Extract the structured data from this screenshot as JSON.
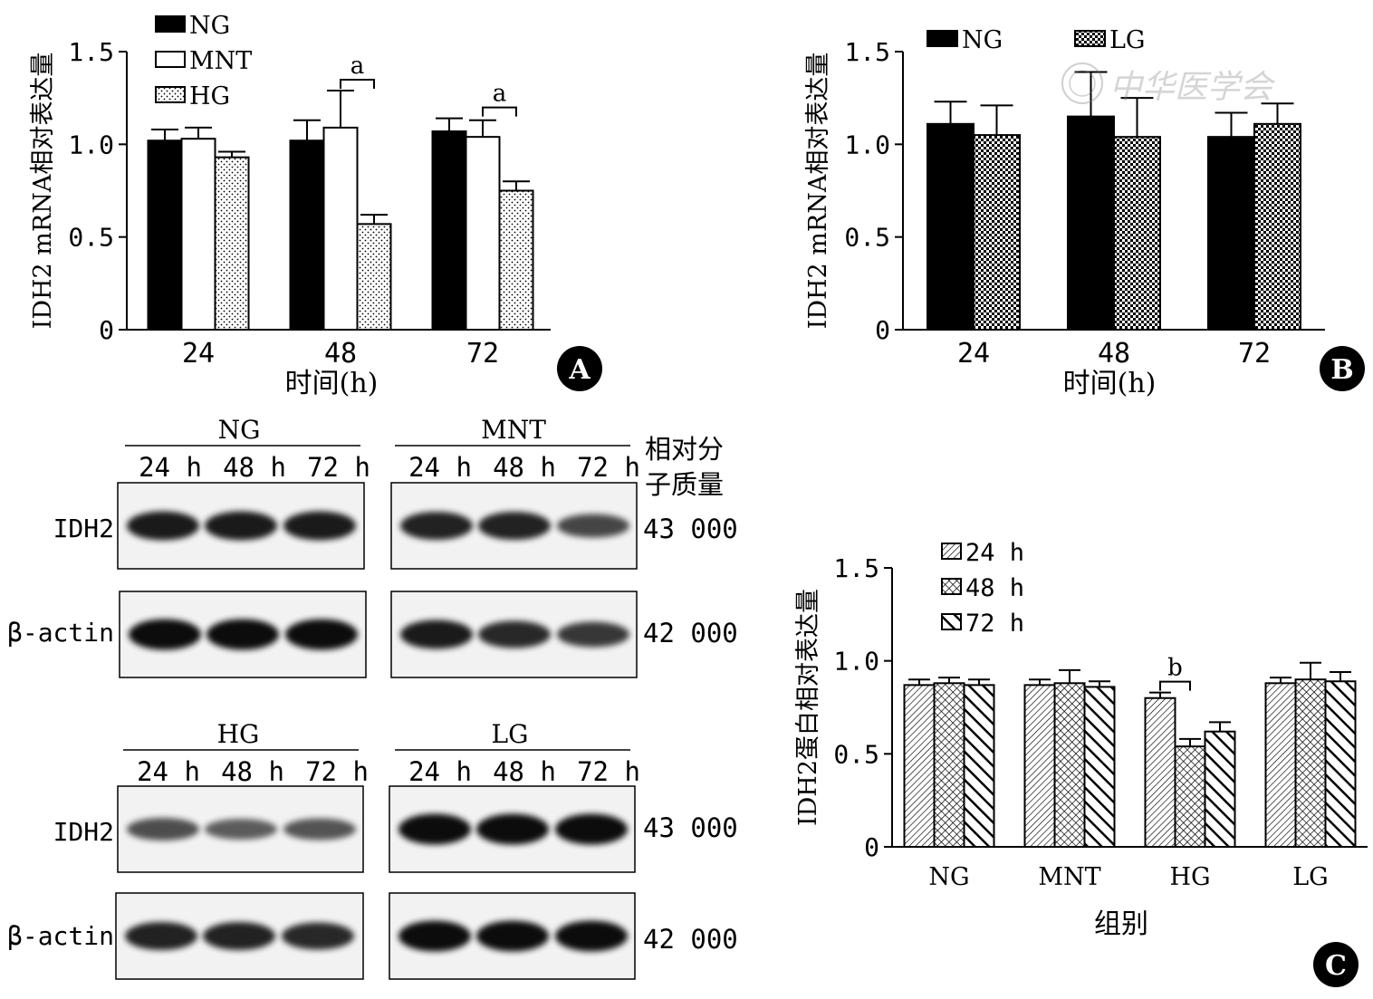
{
  "chart_data": [
    {
      "panel": "A",
      "type": "bar",
      "categories": [
        "24",
        "48",
        "72"
      ],
      "series": [
        {
          "name": "NG",
          "values": [
            1.02,
            1.02,
            1.07
          ],
          "errors": [
            0.06,
            0.11,
            0.07
          ]
        },
        {
          "name": "MNT",
          "values": [
            1.03,
            1.09,
            1.04
          ],
          "errors": [
            0.06,
            0.2,
            0.09
          ]
        },
        {
          "name": "HG",
          "values": [
            0.93,
            0.57,
            0.75
          ],
          "errors": [
            0.03,
            0.05,
            0.05
          ]
        }
      ],
      "xlabel": "时间(h)",
      "ylabel": "IDH2 mRNA相对表达量",
      "ylim": [
        0,
        1.5
      ],
      "yticks": [
        "0",
        "0.5",
        "1.0",
        "1.5"
      ],
      "annotations": [
        {
          "category": "48",
          "text": "a"
        },
        {
          "category": "72",
          "text": "a"
        }
      ],
      "legend": "top-left",
      "grid": false
    },
    {
      "panel": "B",
      "type": "bar",
      "categories": [
        "24",
        "48",
        "72"
      ],
      "series": [
        {
          "name": "NG",
          "values": [
            1.11,
            1.15,
            1.04
          ],
          "errors": [
            0.12,
            0.24,
            0.13
          ]
        },
        {
          "name": "LG",
          "values": [
            1.05,
            1.04,
            1.11
          ],
          "errors": [
            0.16,
            0.21,
            0.11
          ]
        }
      ],
      "xlabel": "时间(h)",
      "ylabel": "IDH2 mRNA相对表达量",
      "ylim": [
        0,
        1.5
      ],
      "yticks": [
        "0",
        "0.5",
        "1.0",
        "1.5"
      ],
      "legend": "top",
      "grid": false
    },
    {
      "panel": "C",
      "type": "bar",
      "categories": [
        "NG",
        "MNT",
        "HG",
        "LG"
      ],
      "series": [
        {
          "name": "24 h",
          "values": [
            0.87,
            0.87,
            0.8,
            0.88
          ],
          "errors": [
            0.03,
            0.03,
            0.03,
            0.03
          ]
        },
        {
          "name": "48 h",
          "values": [
            0.88,
            0.88,
            0.54,
            0.9
          ],
          "errors": [
            0.03,
            0.07,
            0.04,
            0.09
          ]
        },
        {
          "name": "72 h",
          "values": [
            0.87,
            0.86,
            0.62,
            0.89
          ],
          "errors": [
            0.03,
            0.03,
            0.05,
            0.05
          ]
        }
      ],
      "xlabel": "组别",
      "ylabel": "IDH2蛋白相对表达量",
      "ylim": [
        0,
        1.5
      ],
      "yticks": [
        "0",
        "0.5",
        "1.0",
        "1.5"
      ],
      "annotations": [
        {
          "category": "HG",
          "text": "b"
        }
      ],
      "legend": "top-left",
      "grid": false
    }
  ],
  "panel_labels": {
    "a": "A",
    "b": "B",
    "c": "C"
  },
  "watermark_text": "中华医学会",
  "blot": {
    "mw_header": [
      "相对分",
      "子质量"
    ],
    "groups": [
      "NG",
      "MNT",
      "HG",
      "LG"
    ],
    "lanes": [
      "24 h",
      "48 h",
      "72 h"
    ],
    "rows": [
      "IDH2",
      "β-actin"
    ],
    "weights": [
      "43 000",
      "42 000"
    ],
    "band_intensity": {
      "NG": {
        "IDH2": [
          0.9,
          0.9,
          0.9
        ],
        "β-actin": [
          1.0,
          1.0,
          1.0
        ]
      },
      "MNT": {
        "IDH2": [
          0.85,
          0.85,
          0.6
        ],
        "β-actin": [
          0.9,
          0.8,
          0.7
        ]
      },
      "HG": {
        "IDH2": [
          0.55,
          0.45,
          0.5
        ],
        "β-actin": [
          0.85,
          0.85,
          0.8
        ]
      },
      "LG": {
        "IDH2": [
          1.0,
          1.0,
          1.0
        ],
        "β-actin": [
          1.0,
          1.0,
          1.0
        ]
      }
    }
  }
}
